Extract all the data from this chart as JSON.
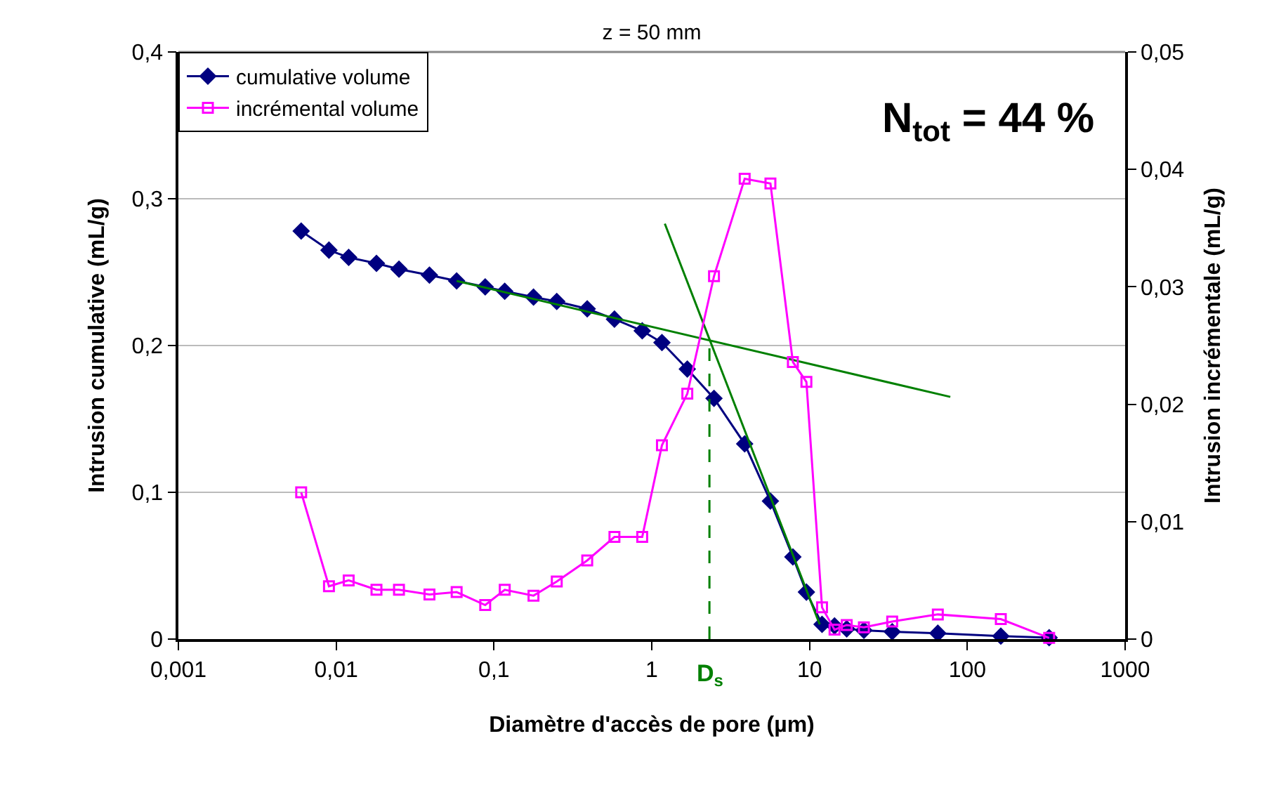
{
  "chart_data": {
    "type": "line",
    "title": "z = 50 mm",
    "xlabel": "Diamètre d'accès de pore (µm)",
    "ylabel": "Intrusion cumulative (mL/g)",
    "y2label": "Intrusion incrémentale (mL/g)",
    "log": "x",
    "grid": "y",
    "legend": "top left",
    "xlim": [
      0.001,
      1000
    ],
    "xticks": [
      {
        "value": 0.001,
        "label": "0,001"
      },
      {
        "value": 0.01,
        "label": "0,01"
      },
      {
        "value": 0.1,
        "label": "0,1"
      },
      1,
      10,
      100,
      1000
    ],
    "ylim": [
      0,
      0.4
    ],
    "yticks": [
      0,
      {
        "value": 0.1,
        "label": "0,1"
      },
      {
        "value": 0.2,
        "label": "0,2"
      },
      {
        "value": 0.3,
        "label": "0,3"
      },
      {
        "value": 0.4,
        "label": "0,4"
      }
    ],
    "y2lim": [
      0,
      0.05
    ],
    "y2ticks": [
      0,
      {
        "value": 0.01,
        "label": "0,01"
      },
      {
        "value": 0.02,
        "label": "0,02"
      },
      {
        "value": 0.03,
        "label": "0,03"
      },
      {
        "value": 0.04,
        "label": "0,04"
      },
      {
        "value": 0.05,
        "label": "0,05"
      }
    ],
    "series": [
      {
        "name": "cumulative volume",
        "color": "#000080",
        "marker": "diamond",
        "x": [
          0.006,
          0.009,
          0.012,
          0.018,
          0.025,
          0.039,
          0.058,
          0.088,
          0.117,
          0.178,
          0.25,
          0.39,
          0.58,
          0.87,
          1.16,
          1.68,
          2.48,
          3.88,
          5.65,
          7.84,
          9.55,
          12.0,
          14.4,
          17.2,
          22.1,
          33.4,
          65,
          163,
          330
        ],
        "values": [
          0.278,
          0.265,
          0.26,
          0.256,
          0.252,
          0.248,
          0.244,
          0.24,
          0.237,
          0.233,
          0.23,
          0.225,
          0.218,
          0.21,
          0.202,
          0.184,
          0.164,
          0.133,
          0.094,
          0.056,
          0.032,
          0.01,
          0.009,
          0.007,
          0.006,
          0.005,
          0.004,
          0.002,
          0.001
        ]
      },
      {
        "name": "incrémental volume",
        "color": "#ff00ff",
        "marker": "square",
        "axis": "y2",
        "x": [
          0.006,
          0.009,
          0.012,
          0.018,
          0.025,
          0.039,
          0.058,
          0.088,
          0.117,
          0.178,
          0.25,
          0.39,
          0.58,
          0.87,
          1.16,
          1.68,
          2.48,
          3.88,
          5.65,
          7.84,
          9.55,
          12.0,
          14.4,
          17.2,
          22.1,
          33.4,
          65,
          163,
          330
        ],
        "values": [
          0.0125,
          0.0045,
          0.005,
          0.0042,
          0.0042,
          0.0038,
          0.004,
          0.0029,
          0.0042,
          0.0037,
          0.0049,
          0.0067,
          0.0087,
          0.0087,
          0.0165,
          0.0209,
          0.0309,
          0.0392,
          0.0388,
          0.0236,
          0.0219,
          0.0027,
          0.0008,
          0.0012,
          0.001,
          0.0015,
          0.0021,
          0.0017,
          0.0001
        ]
      },
      {
        "color": "#008000",
        "marker": "none",
        "x": [
          0.058,
          78
        ],
        "values": [
          0.244,
          0.165
        ]
      },
      {
        "color": "#008000",
        "marker": "none",
        "x": [
          1.21,
          11.6
        ],
        "values": [
          0.283,
          0.01
        ]
      },
      {
        "color": "#008000",
        "marker": "none",
        "line_style": "dashed",
        "x": [
          2.32,
          2.32
        ],
        "values": [
          0,
          0.204
        ]
      }
    ],
    "annotations": [
      "N$_{tot}$ = 44 %",
      "D$_{s}$"
    ]
  }
}
